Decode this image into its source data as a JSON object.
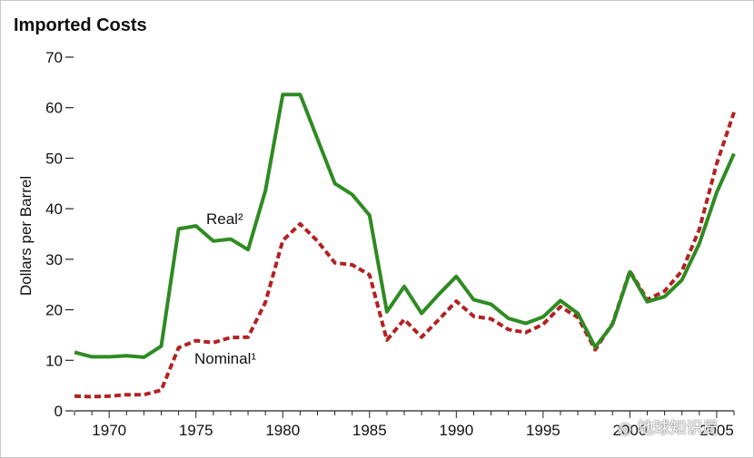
{
  "chart_data": {
    "type": "line",
    "title": "Imported Costs",
    "xlabel": "",
    "ylabel": "Dollars per Barrel",
    "xlim": [
      1968,
      2006
    ],
    "ylim": [
      0,
      70
    ],
    "y_ticks": [
      0,
      10,
      20,
      30,
      40,
      50,
      60,
      70
    ],
    "x_ticks": [
      1970,
      1975,
      1980,
      1985,
      1990,
      1995,
      2000,
      2005
    ],
    "grid": false,
    "x": [
      1968,
      1969,
      1970,
      1971,
      1972,
      1973,
      1974,
      1975,
      1976,
      1977,
      1978,
      1979,
      1980,
      1981,
      1982,
      1983,
      1984,
      1985,
      1986,
      1987,
      1988,
      1989,
      1990,
      1991,
      1992,
      1993,
      1994,
      1995,
      1996,
      1997,
      1998,
      1999,
      2000,
      2001,
      2002,
      2003,
      2004,
      2005,
      2006
    ],
    "series": [
      {
        "name": "Real²",
        "color": "#2e8b22",
        "style": "solid",
        "values": [
          11.6,
          10.7,
          10.7,
          10.9,
          10.6,
          12.8,
          36.0,
          36.6,
          33.6,
          34.0,
          31.9,
          43.6,
          62.6,
          62.6,
          53.8,
          45.0,
          42.8,
          38.7,
          19.6,
          24.6,
          19.3,
          23.1,
          26.6,
          22.0,
          21.1,
          18.3,
          17.3,
          18.6,
          21.8,
          19.3,
          12.6,
          17.1,
          27.5,
          21.6,
          22.6,
          25.9,
          33.1,
          43.2,
          50.9
        ]
      },
      {
        "name": "Nominal¹",
        "color": "#b22222",
        "style": "dashed",
        "values": [
          2.9,
          2.8,
          2.9,
          3.2,
          3.2,
          4.1,
          12.5,
          13.9,
          13.5,
          14.5,
          14.6,
          21.5,
          33.7,
          37.0,
          33.6,
          29.3,
          28.9,
          26.9,
          14.0,
          18.1,
          14.6,
          18.1,
          21.7,
          18.7,
          18.2,
          16.1,
          15.5,
          17.1,
          20.6,
          18.5,
          12.1,
          17.3,
          27.7,
          22.0,
          23.7,
          27.7,
          35.9,
          48.9,
          59.1
        ]
      }
    ],
    "annotations": [
      "Real²",
      "Nominal¹"
    ],
    "legend": "none"
  },
  "watermark": "地球知识局"
}
